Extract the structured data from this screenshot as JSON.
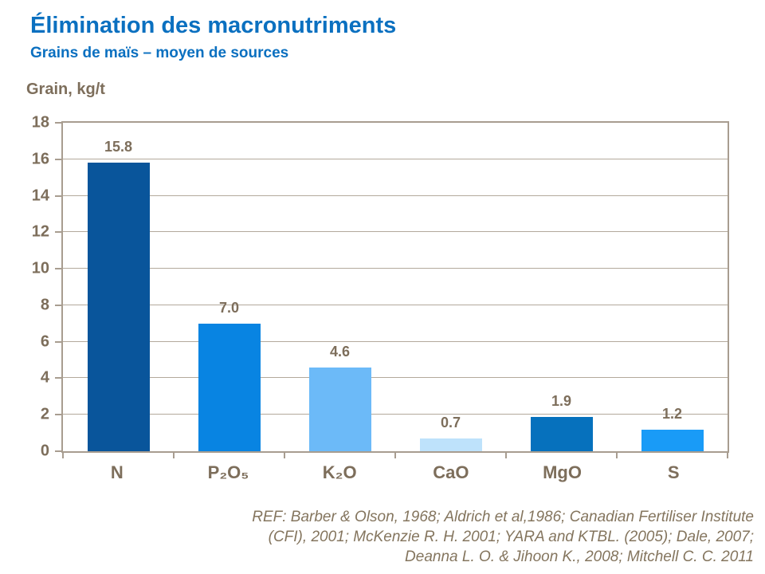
{
  "header": {
    "title": "Élimination des macronutriments",
    "subtitle": "Grains de maïs – moyen de sources"
  },
  "chart_data": {
    "type": "bar",
    "title": "Élimination des macronutriments",
    "subtitle": "Grains de maïs – moyen de sources",
    "ylabel": "Grain, kg/t",
    "xlabel": "",
    "categories": [
      "N",
      "P₂O₅",
      "K₂O",
      "CaO",
      "MgO",
      "S"
    ],
    "values": [
      15.8,
      7.0,
      4.6,
      0.7,
      1.9,
      1.2
    ],
    "value_labels": [
      "15.8",
      "7.0",
      "4.6",
      "0.7",
      "1.9",
      "1.2"
    ],
    "bar_colors": [
      "#09559b",
      "#0884e2",
      "#6cbaf8",
      "#bee2fb",
      "#0671bd",
      "#199bf7"
    ],
    "ylim": [
      0,
      18
    ],
    "ytick_step": 2,
    "grid": true,
    "legend": false,
    "frame_color": "#a89d90",
    "gridline_color": "#b3a99c",
    "label_color": "#7d6e5b",
    "title_color": "#0b70c0"
  },
  "footer": {
    "lines": [
      "REF: Barber & Olson, 1968; Aldrich et al,1986; Canadian Fertiliser Institute",
      "(CFI), 2001; McKenzie R. H. 2001; YARA and KTBL. (2005); Dale, 2007;",
      "Deanna L. O. & Jihoon K.,  2008; Mitchell C. C. 2011"
    ]
  }
}
